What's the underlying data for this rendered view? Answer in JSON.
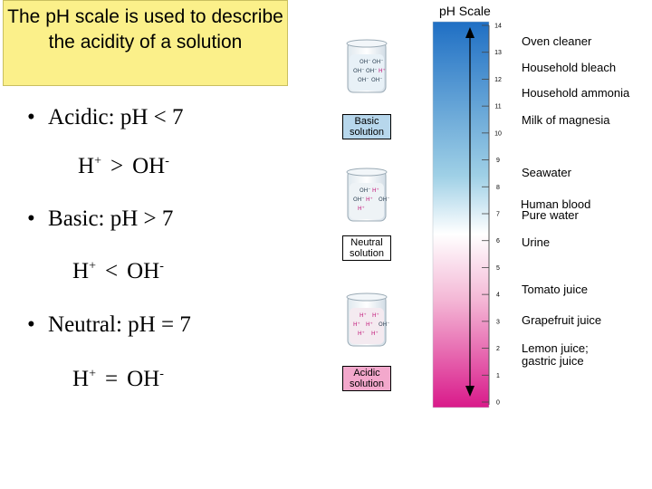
{
  "title": "The pH scale is used to describe the acidity of a solution",
  "bullets": [
    {
      "text": "Acidic: pH < 7",
      "relation": [
        "H",
        "+",
        ">",
        "OH",
        "-"
      ]
    },
    {
      "text": "Basic: pH > 7",
      "relation": [
        "H",
        "+",
        "<",
        "OH",
        "-"
      ]
    },
    {
      "text": "Neutral: pH = 7",
      "relation": [
        "H",
        "+",
        "=",
        "OH",
        "-"
      ]
    }
  ],
  "bullet_symbol": "•",
  "scale": {
    "title": "pH Scale",
    "ticks": [
      "0",
      "1",
      "2",
      "3",
      "4",
      "5",
      "6",
      "7",
      "8",
      "9",
      "10",
      "11",
      "12",
      "13",
      "14"
    ],
    "colors": {
      "basic_top": "#1f6fc4",
      "middle": "#ffffff",
      "acidic_bottom": "#d9198a"
    },
    "examples": [
      {
        "label": "Oven cleaner",
        "ph": 13.5
      },
      {
        "label": "Household bleach",
        "ph": 12.5
      },
      {
        "label": "Household ammonia",
        "ph": 11.5
      },
      {
        "label": "Milk of magnesia",
        "ph": 10.5
      },
      {
        "label": "Seawater",
        "ph": 8.4
      },
      {
        "label": "Human blood",
        "ph": 7.4
      },
      {
        "label": "Pure water",
        "ph": 7.0
      },
      {
        "label": "Urine",
        "ph": 6.0
      },
      {
        "label": "Tomato juice",
        "ph": 4.2
      },
      {
        "label": "Grapefruit juice",
        "ph": 3.0
      },
      {
        "label": "Lemon juice;\ngastric juice",
        "ph": 1.8
      }
    ]
  },
  "beakers": [
    {
      "label": "Basic solution",
      "ions": [
        "OH⁻",
        "OH⁻",
        "OH⁻",
        "OH⁻",
        "H⁺",
        "OH⁻",
        "OH⁻"
      ]
    },
    {
      "label": "Neutral solution",
      "ions": [
        "OH⁻",
        "H⁺",
        "OH⁻",
        "H⁺",
        "OH⁻",
        "H⁺"
      ]
    },
    {
      "label": "Acidic solution",
      "ions": [
        "H⁺",
        "H⁺",
        "H⁺",
        "H⁺",
        "OH⁻",
        "H⁺",
        "H⁺"
      ]
    }
  ]
}
